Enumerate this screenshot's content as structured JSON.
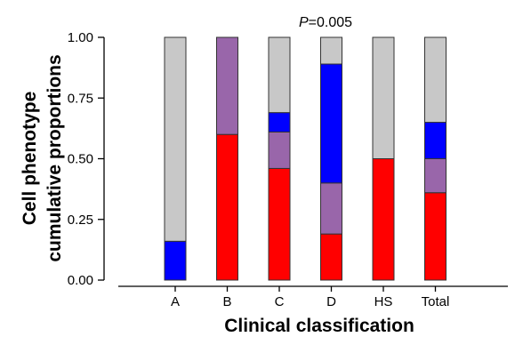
{
  "chart_data": {
    "type": "bar",
    "stacked": true,
    "categories": [
      "A",
      "B",
      "C",
      "D",
      "HS",
      "Total"
    ],
    "series": [
      {
        "color": "#ff0000",
        "values": [
          0.0,
          0.6,
          0.46,
          0.19,
          0.5,
          0.36
        ]
      },
      {
        "color": "#9966aa",
        "values": [
          0.0,
          0.4,
          0.15,
          0.21,
          0.0,
          0.14
        ]
      },
      {
        "color": "#0000ff",
        "values": [
          0.16,
          0.0,
          0.08,
          0.49,
          0.0,
          0.15
        ]
      },
      {
        "color": "#c8c8c8",
        "values": [
          0.84,
          0.0,
          0.31,
          0.11,
          0.5,
          0.35
        ]
      }
    ],
    "ylim": [
      0,
      1
    ],
    "yticks": [
      "0.00",
      "0.25",
      "0.50",
      "0.75",
      "1.00"
    ],
    "xlabel": "Clinical classification",
    "ylabel_lines": [
      "Cell phenotype",
      "cumulative proportions"
    ],
    "annotation": {
      "p_label": "P",
      "p_value": "=0.005"
    },
    "grid": false,
    "legend": "none"
  }
}
